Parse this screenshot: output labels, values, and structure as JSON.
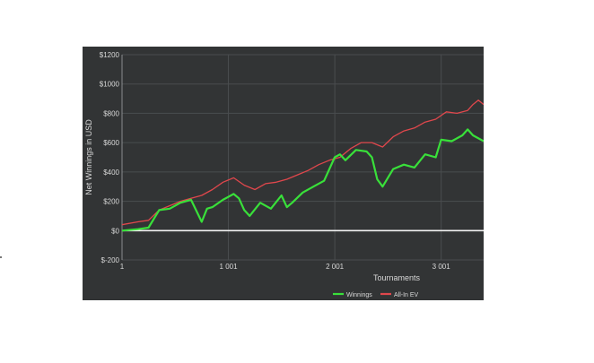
{
  "chart_data": {
    "type": "line",
    "title": "",
    "xlabel": "Tournaments",
    "ylabel": "Net Winnings in USD",
    "xlim": [
      1,
      3400
    ],
    "ylim": [
      -200,
      1200
    ],
    "x_ticks": [
      {
        "value": 1,
        "label": "1"
      },
      {
        "value": 1001,
        "label": "1 001"
      },
      {
        "value": 2001,
        "label": "2 001"
      },
      {
        "value": 3001,
        "label": "3 001"
      }
    ],
    "y_ticks": [
      {
        "value": -200,
        "label": "$-200"
      },
      {
        "value": 0,
        "label": "$0"
      },
      {
        "value": 200,
        "label": "$200"
      },
      {
        "value": 400,
        "label": "$400"
      },
      {
        "value": 600,
        "label": "$600"
      },
      {
        "value": 800,
        "label": "$800"
      },
      {
        "value": 1000,
        "label": "$1000"
      },
      {
        "value": 1200,
        "label": "$1200"
      }
    ],
    "grid": true,
    "legend_position": "bottom-right",
    "series": [
      {
        "name": "Winnings",
        "color": "#39e03a",
        "x": [
          1,
          150,
          250,
          350,
          450,
          550,
          650,
          750,
          800,
          850,
          950,
          1050,
          1100,
          1150,
          1200,
          1300,
          1400,
          1500,
          1550,
          1600,
          1700,
          1800,
          1900,
          2000,
          2050,
          2100,
          2200,
          2300,
          2350,
          2400,
          2450,
          2550,
          2650,
          2750,
          2850,
          2950,
          3000,
          3100,
          3200,
          3250,
          3300,
          3400
        ],
        "y": [
          0,
          10,
          20,
          140,
          150,
          190,
          210,
          60,
          150,
          160,
          210,
          250,
          220,
          140,
          100,
          190,
          150,
          240,
          160,
          190,
          260,
          300,
          340,
          500,
          520,
          480,
          550,
          540,
          500,
          350,
          300,
          420,
          450,
          430,
          520,
          500,
          620,
          610,
          650,
          690,
          650,
          610
        ]
      },
      {
        "name": "All-In EV",
        "color": "#e0474c",
        "x": [
          1,
          150,
          250,
          350,
          450,
          550,
          650,
          750,
          850,
          950,
          1050,
          1150,
          1250,
          1350,
          1450,
          1550,
          1650,
          1750,
          1850,
          1950,
          2050,
          2150,
          2250,
          2350,
          2450,
          2550,
          2650,
          2750,
          2850,
          2950,
          3050,
          3150,
          3250,
          3300,
          3350,
          3400
        ],
        "y": [
          40,
          60,
          70,
          140,
          170,
          200,
          220,
          240,
          280,
          330,
          360,
          310,
          280,
          320,
          330,
          350,
          380,
          410,
          450,
          480,
          500,
          560,
          600,
          600,
          570,
          640,
          680,
          700,
          740,
          760,
          810,
          800,
          820,
          860,
          890,
          860
        ]
      }
    ]
  }
}
